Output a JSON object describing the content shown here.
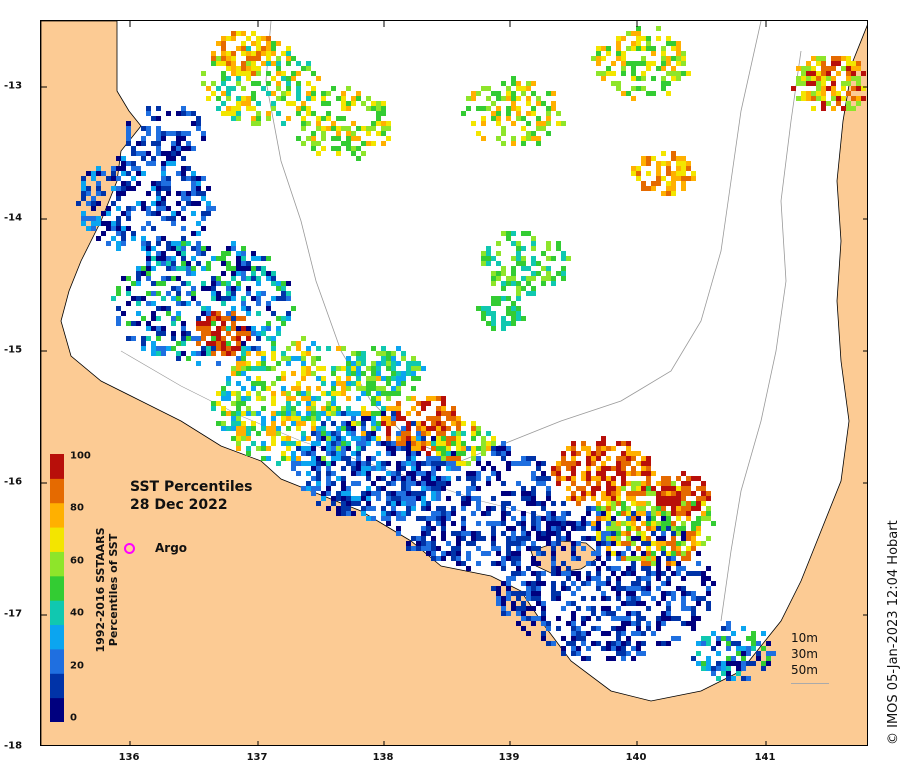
{
  "map": {
    "title_line1": "SST Percentiles",
    "title_line2": "28 Dec 2022",
    "credit": "© IMOS 05-Jan-2023 12:04 Hobart",
    "x_axis": {
      "ticks": [
        "136",
        "137",
        "138",
        "139",
        "140",
        "141"
      ],
      "min": 135.3,
      "max": 141.8
    },
    "y_axis": {
      "ticks": [
        "-13",
        "-14",
        "-15",
        "-16",
        "-17",
        "-18"
      ],
      "min": -18.0,
      "max": -12.5
    },
    "argo": {
      "label": "Argo",
      "lon": 136.0,
      "lat": -16.5,
      "color": "#ff00ff"
    },
    "colorbar": {
      "title_line1": "1992-2016 SSTAARS",
      "title_line2": "Percentiles of SST",
      "labels": [
        "100",
        "80",
        "60",
        "40",
        "20",
        "0"
      ],
      "colors": [
        "#00007f",
        "#0033a8",
        "#1f6fe0",
        "#0ba5f0",
        "#10c8b0",
        "#33cc33",
        "#8ee52a",
        "#f3e500",
        "#ffb000",
        "#e56a00",
        "#b80f0a"
      ]
    },
    "depth_legend": [
      "10m",
      "30m",
      "50m"
    ],
    "colors": {
      "land": "#fccb94",
      "water": "#ffffff",
      "coast": "#000000",
      "isobath": "#999999"
    }
  }
}
